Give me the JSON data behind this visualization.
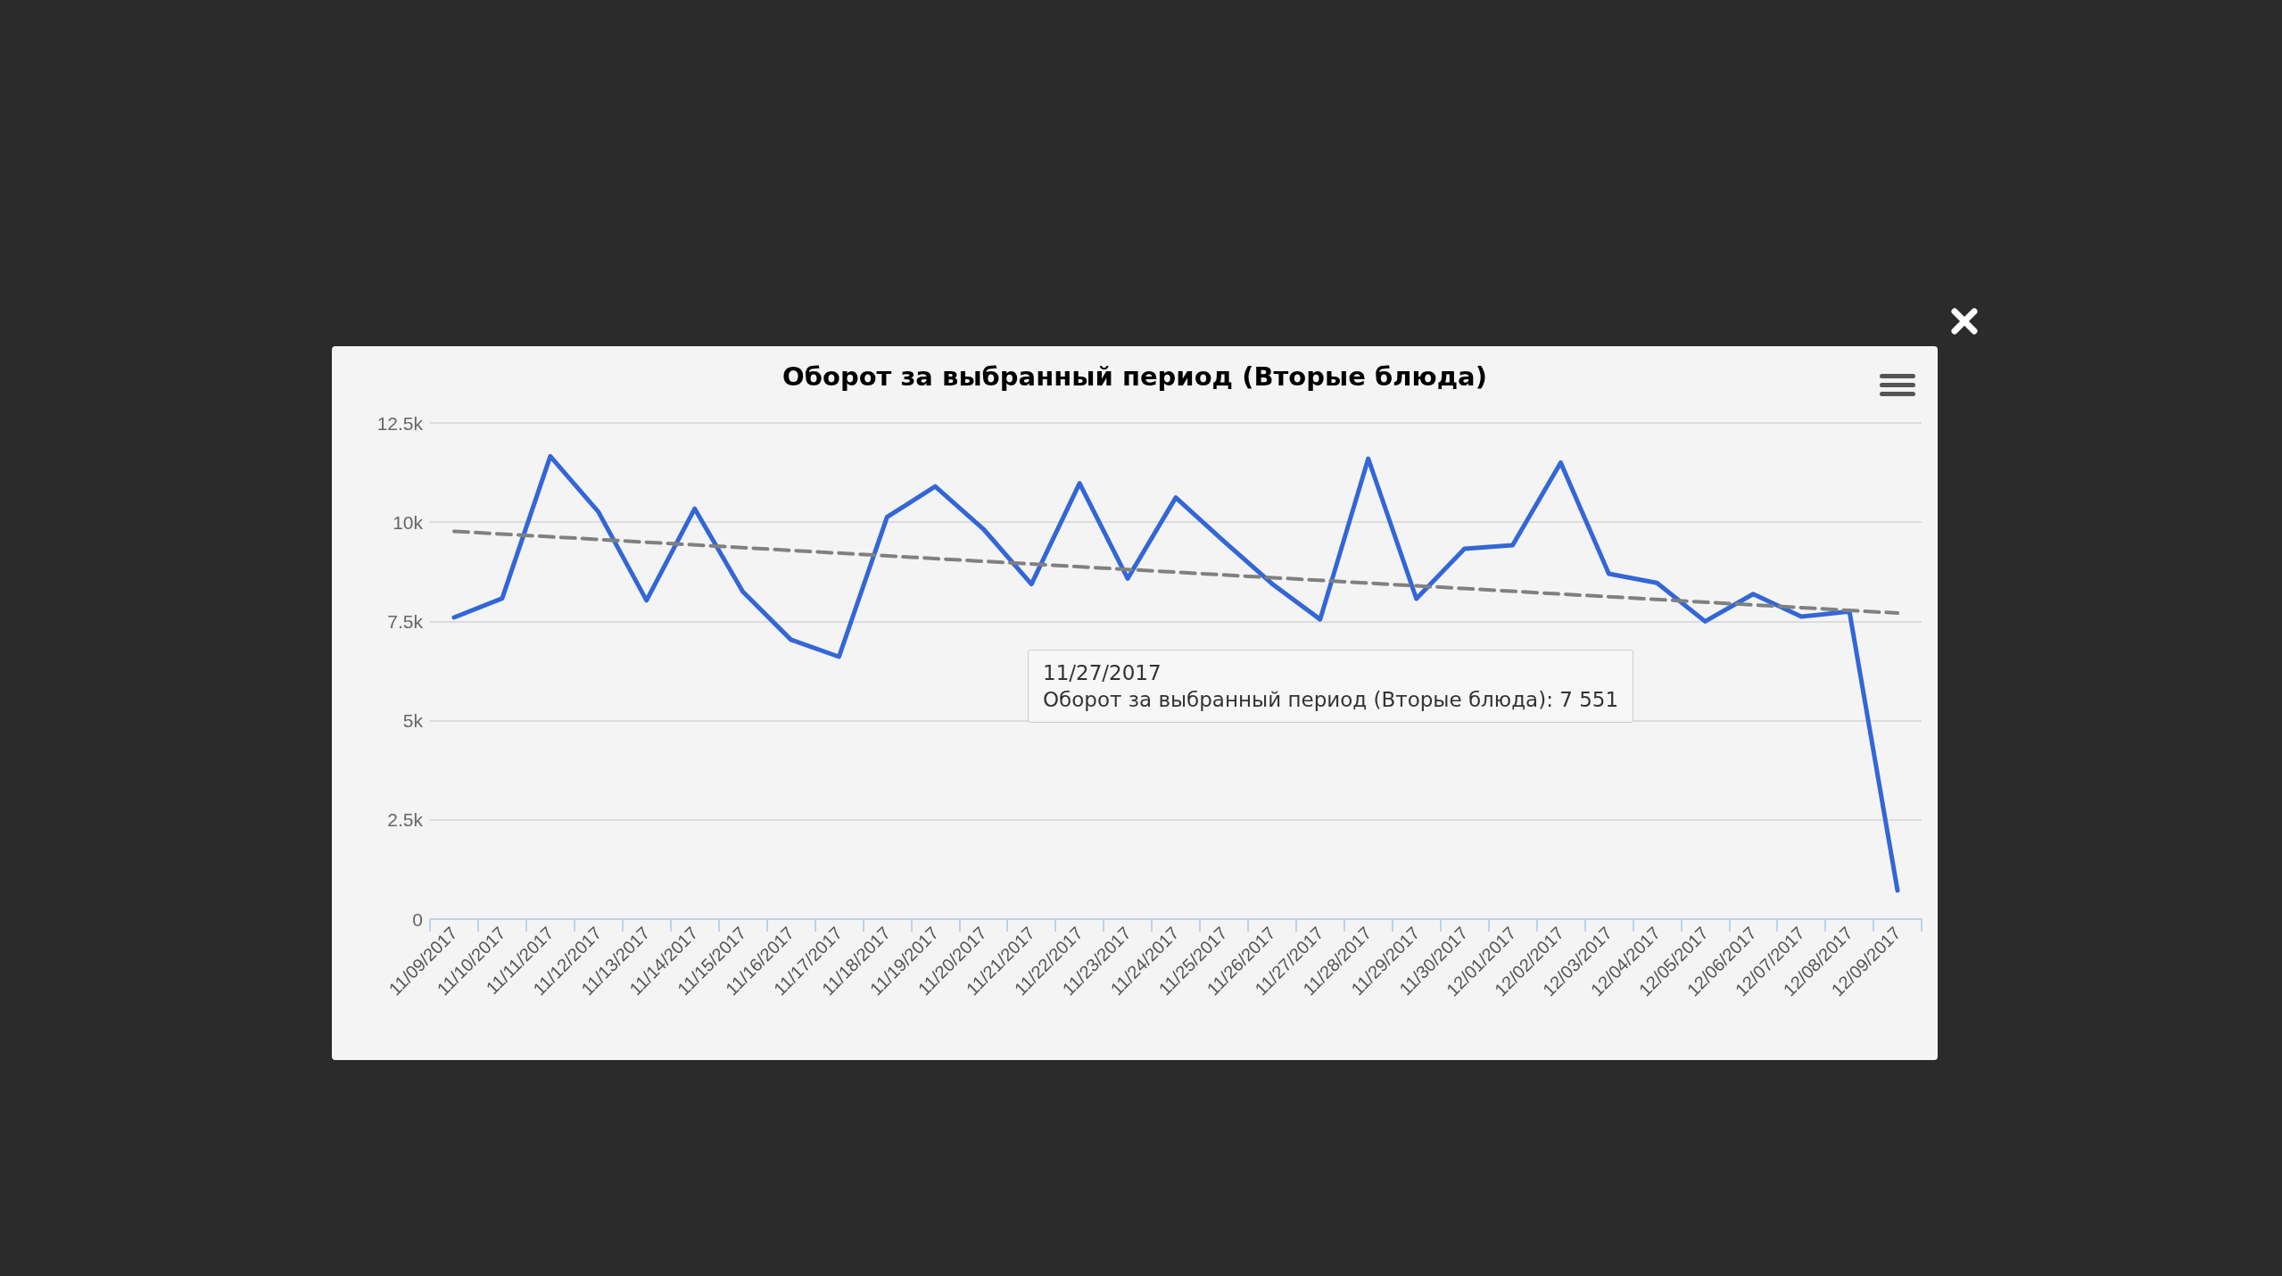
{
  "chart_data": {
    "type": "line",
    "title": "Оборот за выбранный период (Вторые блюда)",
    "categories": [
      "11/09/2017",
      "11/10/2017",
      "11/11/2017",
      "11/12/2017",
      "11/13/2017",
      "11/14/2017",
      "11/15/2017",
      "11/16/2017",
      "11/17/2017",
      "11/18/2017",
      "11/19/2017",
      "11/20/2017",
      "11/21/2017",
      "11/22/2017",
      "11/23/2017",
      "11/24/2017",
      "11/25/2017",
      "11/26/2017",
      "11/27/2017",
      "11/28/2017",
      "11/29/2017",
      "11/30/2017",
      "12/01/2017",
      "12/02/2017",
      "12/03/2017",
      "12/04/2017",
      "12/05/2017",
      "12/06/2017",
      "12/07/2017",
      "12/08/2017",
      "12/09/2017"
    ],
    "series": [
      {
        "color": "#3366d6",
        "line_style": "solid",
        "values": [
          7600,
          8080,
          11660,
          10260,
          8030,
          10340,
          8250,
          7040,
          6610,
          10130,
          10900,
          9830,
          8440,
          10980,
          8580,
          10620,
          9520,
          8450,
          7551,
          11600,
          8070,
          9330,
          9420,
          11500,
          8700,
          8470,
          7500,
          8190,
          7620,
          7750,
          720
        ]
      },
      {
        "type": "line",
        "color": "#808080",
        "line_style": "dashed",
        "x": [
          "11/09/2017",
          "12/09/2017"
        ],
        "values": [
          9770,
          7710
        ]
      }
    ],
    "ylim": [
      0,
      12500
    ],
    "yticks": [
      0,
      {
        "value": 2500,
        "label": "2.5k"
      },
      {
        "value": 5000,
        "label": "5k"
      },
      {
        "value": 7500,
        "label": "7.5k"
      },
      {
        "value": 10000,
        "label": "10k"
      },
      {
        "value": 12500,
        "label": "12.5k"
      }
    ],
    "grid": "y",
    "marker": "none",
    "annotations": [
      "11/27/2017\nОборот за выбранный период (Вторые блюда): 7 551"
    ]
  }
}
